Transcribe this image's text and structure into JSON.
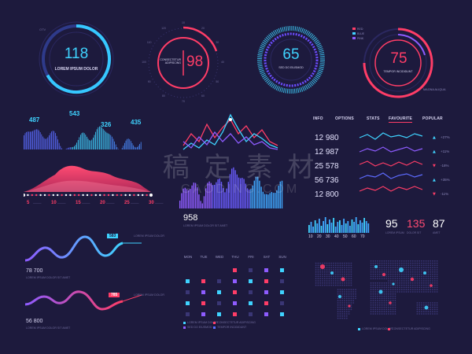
{
  "gauges": [
    {
      "value": "118",
      "label": "LOREM IPSUM DOLOR",
      "sublabel": "OTV",
      "color": "#3fd3ff",
      "level": 0.62
    },
    {
      "value": "98",
      "label": "CONSECTETUR ADIPISCING",
      "color": "#ff3d67",
      "level": 0.5
    },
    {
      "value": "65",
      "label": "SED DO EIUSMOD",
      "color": "#3fd3ff",
      "level": 0.65
    },
    {
      "value": "75",
      "label": "TEMPOR INCIDIDUNT",
      "color": "#ff3d67",
      "level": 0.75,
      "legend": [
        "RED",
        "BLUE",
        "PINK"
      ],
      "caption": "MAGNA ALIQUA"
    }
  ],
  "dial_ticks": [
    "10",
    "20",
    "30",
    "40",
    "50",
    "60",
    "70",
    "80",
    "90",
    "100",
    "110",
    "120"
  ],
  "wave_chart": {
    "labels": [
      "487",
      "543",
      "326",
      "435"
    ]
  },
  "area_chart": {
    "x_labels": [
      "5",
      "10",
      "15",
      "20",
      "25",
      "30"
    ]
  },
  "table": {
    "tabs": [
      "INFO",
      "OPTIONS",
      "STATS",
      "FAVOURITE",
      "POPULAR"
    ],
    "active_tab": "FAVOURITE",
    "rows": [
      {
        "value": "12 980",
        "pct": "+27%",
        "dir": "up"
      },
      {
        "value": "12 987",
        "pct": "+11%",
        "dir": "up"
      },
      {
        "value": "25 578",
        "pct": "-18%",
        "dir": "down"
      },
      {
        "value": "56 736",
        "pct": "+35%",
        "dir": "up"
      },
      {
        "value": "12 800",
        "pct": "-11%",
        "dir": "down"
      }
    ]
  },
  "histogram": {
    "value": "958",
    "caption": "LOREM IPSUM DOLOR SIT AMET"
  },
  "mini_bars": {
    "x_labels": [
      "10",
      "20",
      "30",
      "40",
      "50",
      "60",
      "70"
    ]
  },
  "stats": [
    {
      "value": "95",
      "color": "#ffffff",
      "sub": "LOREM IPSUM"
    },
    {
      "value": "135",
      "color": "#ff4b72",
      "sub": "DOLOR SIT"
    },
    {
      "value": "87",
      "color": "#ffffff",
      "sub": "AMET"
    }
  ],
  "line_chart_blue": {
    "value": "78 700",
    "badge": "583",
    "note": "LOREM IPSUM DOLOR",
    "legend": "LOREM IPSUM DOLOR SIT AMET"
  },
  "line_chart_red": {
    "value": "56 800",
    "badge": "785",
    "note": "LOREM IPSUM DOLOR",
    "legend": "LOREM IPSUM DOLOR SIT AMET"
  },
  "calendar": {
    "days": [
      "MON",
      "TUE",
      "WED",
      "THU",
      "FRI",
      "SAT",
      "SUN"
    ],
    "legend": [
      "LOREM IPSUM DOLOR",
      "CONSECTETUR ADIPISCING",
      "SED DO EIUSMOD",
      "TEMPOR INCIDIDUNT"
    ]
  },
  "map": {
    "legend": [
      "LOREM IPSUM DOLOR",
      "CONSECTETUR ADIPISCING"
    ]
  },
  "watermark": {
    "cn": "稿 定 素 材",
    "en": "GAODING.COM"
  },
  "colors": {
    "bg": "#1d1a3d",
    "cyan": "#3fd3ff",
    "pink": "#ff3d67",
    "purple": "#8e5cff",
    "blue": "#4a6dff"
  }
}
